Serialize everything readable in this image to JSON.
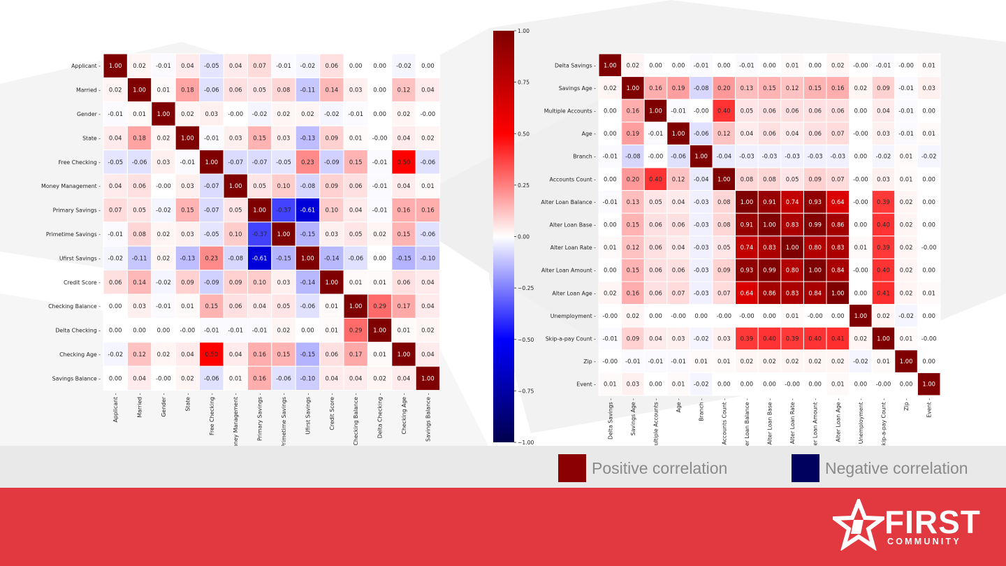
{
  "chart_data": [
    {
      "type": "heatmap",
      "labels": [
        "Applicant",
        "Married",
        "Gender",
        "State",
        "Free Checking",
        "Money Management",
        "Primary Savings",
        "Primetime Savings",
        "Ufirst Savings",
        "Credit Score",
        "Checking Balance",
        "Delta Checking",
        "Checking Age",
        "Savings Balance"
      ],
      "values": [
        [
          "1.00",
          "0.02",
          "-0.01",
          "0.04",
          "-0.05",
          "0.04",
          "0.07",
          "-0.01",
          "-0.02",
          "0.06",
          "0.00",
          "0.00",
          "-0.02",
          "0.00"
        ],
        [
          "0.02",
          "1.00",
          "0.01",
          "0.18",
          "-0.06",
          "0.06",
          "0.05",
          "0.08",
          "-0.11",
          "0.14",
          "0.03",
          "0.00",
          "0.12",
          "0.04"
        ],
        [
          "-0.01",
          "0.01",
          "1.00",
          "0.02",
          "0.03",
          "-0.00",
          "-0.02",
          "0.02",
          "0.02",
          "-0.02",
          "-0.01",
          "0.00",
          "0.02",
          "-0.00"
        ],
        [
          "0.04",
          "0.18",
          "0.02",
          "1.00",
          "-0.01",
          "0.03",
          "0.15",
          "0.03",
          "-0.13",
          "0.09",
          "0.01",
          "-0.00",
          "0.04",
          "0.02"
        ],
        [
          "-0.05",
          "-0.06",
          "0.03",
          "-0.01",
          "1.00",
          "-0.07",
          "-0.07",
          "-0.05",
          "0.23",
          "-0.09",
          "0.15",
          "-0.01",
          "0.50",
          "-0.06"
        ],
        [
          "0.04",
          "0.06",
          "-0.00",
          "0.03",
          "-0.07",
          "1.00",
          "0.05",
          "0.10",
          "-0.08",
          "0.09",
          "0.06",
          "-0.01",
          "0.04",
          "0.01"
        ],
        [
          "0.07",
          "0.05",
          "-0.02",
          "0.15",
          "-0.07",
          "0.05",
          "1.00",
          "-0.37",
          "-0.61",
          "0.10",
          "0.04",
          "-0.01",
          "0.16",
          "0.16"
        ],
        [
          "-0.01",
          "0.08",
          "0.02",
          "0.03",
          "-0.05",
          "0.10",
          "-0.37",
          "1.00",
          "-0.15",
          "0.03",
          "0.05",
          "0.02",
          "0.15",
          "-0.06"
        ],
        [
          "-0.02",
          "-0.11",
          "0.02",
          "-0.13",
          "0.23",
          "-0.08",
          "-0.61",
          "-0.15",
          "1.00",
          "-0.14",
          "-0.06",
          "0.00",
          "-0.15",
          "-0.10"
        ],
        [
          "0.06",
          "0.14",
          "-0.02",
          "0.09",
          "-0.09",
          "0.09",
          "0.10",
          "0.03",
          "-0.14",
          "1.00",
          "0.01",
          "0.01",
          "0.06",
          "0.04"
        ],
        [
          "0.00",
          "0.03",
          "-0.01",
          "0.01",
          "0.15",
          "0.06",
          "0.04",
          "0.05",
          "-0.06",
          "0.01",
          "1.00",
          "0.29",
          "0.17",
          "0.04"
        ],
        [
          "0.00",
          "0.00",
          "0.00",
          "-0.00",
          "-0.01",
          "-0.01",
          "-0.01",
          "0.02",
          "0.00",
          "0.01",
          "0.29",
          "1.00",
          "0.01",
          "0.02"
        ],
        [
          "-0.02",
          "0.12",
          "0.02",
          "0.04",
          "0.50",
          "0.04",
          "0.16",
          "0.15",
          "-0.15",
          "0.06",
          "0.17",
          "0.01",
          "1.00",
          "0.04"
        ],
        [
          "0.00",
          "0.04",
          "-0.00",
          "0.02",
          "-0.06",
          "0.01",
          "0.16",
          "-0.06",
          "-0.10",
          "0.04",
          "0.04",
          "0.02",
          "0.04",
          "1.00"
        ]
      ],
      "vmin": -1,
      "vmax": 1
    },
    {
      "type": "heatmap",
      "labels": [
        "Delta Savings",
        "Savings Age",
        "Multiple Accounts",
        "Age",
        "Branch",
        "Accounts Count",
        "Alter Loan Balance",
        "Alter Loan Base",
        "Alter Loan Rate",
        "Alter Loan Amount",
        "Alter Loan Age",
        "Unemployment",
        "Skip-a-pay Count",
        "Zip",
        "Event"
      ],
      "values": [
        [
          "1.00",
          "0.02",
          "0.00",
          "0.00",
          "-0.01",
          "0.00",
          "-0.01",
          "0.00",
          "0.01",
          "0.00",
          "0.02",
          "-0.00",
          "-0.01",
          "-0.00",
          "0.01"
        ],
        [
          "0.02",
          "1.00",
          "0.16",
          "0.19",
          "-0.08",
          "0.20",
          "0.13",
          "0.15",
          "0.12",
          "0.15",
          "0.16",
          "0.02",
          "0.09",
          "-0.01",
          "0.03"
        ],
        [
          "0.00",
          "0.16",
          "1.00",
          "-0.01",
          "-0.00",
          "0.40",
          "0.05",
          "0.06",
          "0.06",
          "0.06",
          "0.06",
          "0.00",
          "0.04",
          "-0.01",
          "0.00"
        ],
        [
          "0.00",
          "0.19",
          "-0.01",
          "1.00",
          "-0.06",
          "0.12",
          "0.04",
          "0.06",
          "0.04",
          "0.06",
          "0.07",
          "-0.00",
          "0.03",
          "-0.01",
          "0.01"
        ],
        [
          "-0.01",
          "-0.08",
          "-0.00",
          "-0.06",
          "1.00",
          "-0.04",
          "-0.03",
          "-0.03",
          "-0.03",
          "-0.03",
          "-0.03",
          "0.00",
          "-0.02",
          "0.01",
          "-0.02"
        ],
        [
          "0.00",
          "0.20",
          "0.40",
          "0.12",
          "-0.04",
          "1.00",
          "0.08",
          "0.08",
          "0.05",
          "0.09",
          "0.07",
          "-0.00",
          "0.03",
          "0.01",
          "0.00"
        ],
        [
          "-0.01",
          "0.13",
          "0.05",
          "0.04",
          "-0.03",
          "0.08",
          "1.00",
          "0.91",
          "0.74",
          "0.93",
          "0.64",
          "-0.00",
          "0.39",
          "0.02",
          "0.00"
        ],
        [
          "0.00",
          "0.15",
          "0.06",
          "0.06",
          "-0.03",
          "0.08",
          "0.91",
          "1.00",
          "0.83",
          "0.99",
          "0.86",
          "0.00",
          "0.40",
          "0.02",
          "0.00"
        ],
        [
          "0.01",
          "0.12",
          "0.06",
          "0.04",
          "-0.03",
          "0.05",
          "0.74",
          "0.83",
          "1.00",
          "0.80",
          "0.83",
          "0.01",
          "0.39",
          "0.02",
          "-0.00"
        ],
        [
          "0.00",
          "0.15",
          "0.06",
          "0.06",
          "-0.03",
          "0.09",
          "0.93",
          "0.99",
          "0.80",
          "1.00",
          "0.84",
          "-0.00",
          "0.40",
          "0.02",
          "0.00"
        ],
        [
          "0.02",
          "0.16",
          "0.06",
          "0.07",
          "-0.03",
          "0.07",
          "0.64",
          "0.86",
          "0.83",
          "0.84",
          "1.00",
          "0.00",
          "0.41",
          "0.02",
          "0.01"
        ],
        [
          "-0.00",
          "0.02",
          "0.00",
          "-0.00",
          "0.00",
          "-0.00",
          "-0.00",
          "0.00",
          "0.01",
          "-0.00",
          "0.00",
          "1.00",
          "0.02",
          "-0.02",
          "0.00"
        ],
        [
          "-0.01",
          "0.09",
          "0.04",
          "0.03",
          "-0.02",
          "0.03",
          "0.39",
          "0.40",
          "0.39",
          "0.40",
          "0.41",
          "0.02",
          "1.00",
          "0.01",
          "-0.00"
        ],
        [
          "-0.00",
          "-0.01",
          "-0.01",
          "-0.01",
          "0.01",
          "0.01",
          "0.02",
          "0.02",
          "0.02",
          "0.02",
          "0.02",
          "-0.02",
          "0.01",
          "1.00",
          "0.00"
        ],
        [
          "0.01",
          "0.03",
          "0.00",
          "0.01",
          "-0.02",
          "0.00",
          "0.00",
          "0.00",
          "-0.00",
          "0.00",
          "0.01",
          "0.00",
          "-0.00",
          "0.00",
          "1.00"
        ]
      ],
      "vmin": -1,
      "vmax": 1
    }
  ],
  "colorbar": {
    "ticks": [
      "1.00",
      "0.75",
      "0.50",
      "0.25",
      "0.00",
      "−0.25",
      "−0.50",
      "−0.75",
      "−1.00"
    ],
    "colors": [
      "#00004c",
      "#0000ff",
      "#ffffff",
      "#ff0000",
      "#7f0000"
    ]
  },
  "legend": {
    "positive_label": "Positive correlation",
    "positive_color": "#8b0000",
    "negative_label": "Negative correlation",
    "negative_color": "#00005f"
  },
  "logo": {
    "line1": "FIRST",
    "line2": "COMMUNITY",
    "icon": "star-logo-icon"
  }
}
